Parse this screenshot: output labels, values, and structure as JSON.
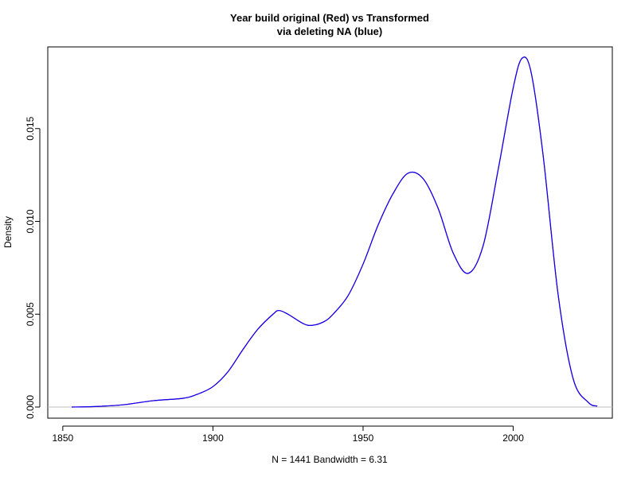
{
  "chart_data": {
    "type": "line",
    "title_line1": "Year build original (Red) vs Transformed",
    "title_line2": "via  deleting NA (blue)",
    "xlabel": "N = 1441   Bandwidth = 6.31",
    "ylabel": "Density",
    "xlim": [
      1845,
      2033
    ],
    "ylim": [
      -0.0006,
      0.0194
    ],
    "x_ticks": [
      1850,
      1900,
      1950,
      2000
    ],
    "x_tick_labels": [
      "1850",
      "1900",
      "1950",
      "2000"
    ],
    "y_ticks": [
      0.0,
      0.005,
      0.01,
      0.015
    ],
    "y_tick_labels": [
      "0.000",
      "0.005",
      "0.010",
      "0.015"
    ],
    "zero_line": true,
    "grid": false,
    "colors": {
      "original": "#ff0000",
      "transformed": "#0000ff",
      "zero_line": "#bebebe",
      "axis": "#000000"
    },
    "x": [
      1853,
      1860,
      1870,
      1880,
      1890,
      1895,
      1900,
      1905,
      1910,
      1915,
      1920,
      1922,
      1925,
      1930,
      1933,
      1937,
      1940,
      1945,
      1950,
      1955,
      1960,
      1965,
      1970,
      1975,
      1980,
      1985,
      1990,
      1995,
      2000,
      2003,
      2006,
      2010,
      2015,
      2020,
      2025,
      2028
    ],
    "series": [
      {
        "key": "original",
        "values": [
          0.0,
          2e-05,
          0.00012,
          0.00034,
          0.00047,
          0.0007,
          0.0011,
          0.0019,
          0.0031,
          0.0042,
          0.005,
          0.0052,
          0.005,
          0.0045,
          0.0044,
          0.0046,
          0.005,
          0.006,
          0.0077,
          0.0098,
          0.0115,
          0.0126,
          0.0123,
          0.0107,
          0.0083,
          0.0072,
          0.0087,
          0.0128,
          0.0172,
          0.0188,
          0.018,
          0.0135,
          0.006,
          0.0015,
          0.00025,
          5e-05
        ]
      },
      {
        "key": "transformed",
        "values": [
          0.0,
          2e-05,
          0.00012,
          0.00034,
          0.00047,
          0.0007,
          0.0011,
          0.0019,
          0.0031,
          0.0042,
          0.005,
          0.0052,
          0.005,
          0.0045,
          0.0044,
          0.0046,
          0.005,
          0.006,
          0.0077,
          0.0098,
          0.0115,
          0.0126,
          0.0123,
          0.0107,
          0.0083,
          0.0072,
          0.0087,
          0.0128,
          0.0172,
          0.0188,
          0.018,
          0.0135,
          0.006,
          0.0015,
          0.00025,
          5e-05
        ]
      }
    ]
  }
}
